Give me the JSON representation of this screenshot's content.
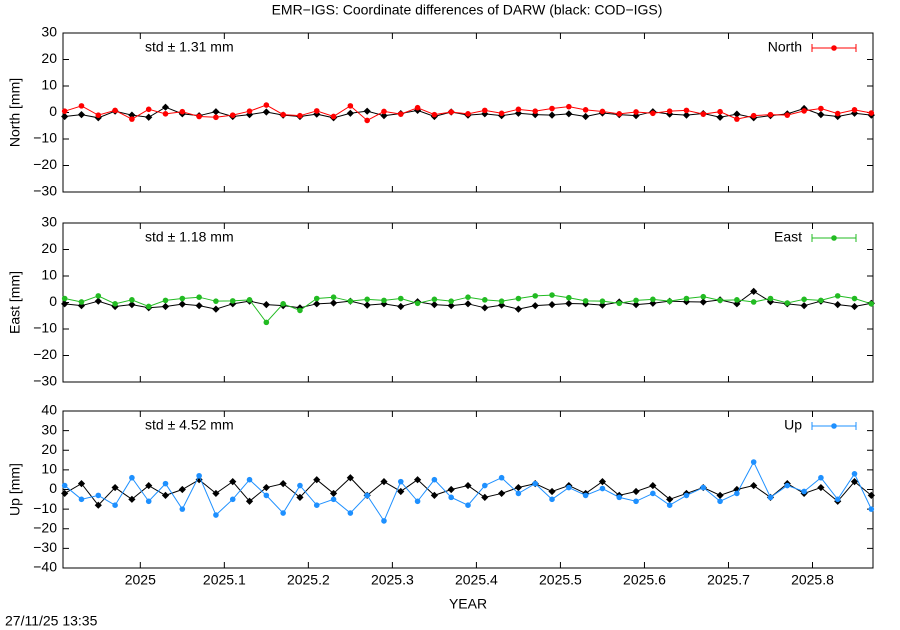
{
  "title": "EMR−IGS: Coordinate differences of DARW (black: COD−IGS)",
  "footer": "27/11/25 13:35",
  "chart_data": [
    {
      "type": "line",
      "ylabel": "North [mm]",
      "annotation": "std ± 1.31 mm",
      "annotation_color": "#ff0000",
      "xlim": [
        2024.908,
        2025.872
      ],
      "ylim": [
        -30,
        30
      ],
      "yticks": [
        {
          "value": -30,
          "label": "−30"
        },
        {
          "value": -20,
          "label": "−20"
        },
        {
          "value": -10,
          "label": "−10"
        },
        0,
        10,
        20,
        30
      ],
      "x": [
        2024.91,
        2024.93,
        2024.95,
        2024.97,
        2024.99,
        2025.01,
        2025.03,
        2025.05,
        2025.07,
        2025.09,
        2025.11,
        2025.13,
        2025.15,
        2025.17,
        2025.19,
        2025.21,
        2025.23,
        2025.25,
        2025.27,
        2025.29,
        2025.31,
        2025.33,
        2025.35,
        2025.37,
        2025.39,
        2025.41,
        2025.43,
        2025.45,
        2025.47,
        2025.49,
        2025.51,
        2025.53,
        2025.55,
        2025.57,
        2025.59,
        2025.61,
        2025.63,
        2025.65,
        2025.67,
        2025.69,
        2025.71,
        2025.73,
        2025.75,
        2025.77,
        2025.79,
        2025.81,
        2025.83,
        2025.85,
        2025.87
      ],
      "series": [
        {
          "color": "#000000",
          "values": [
            -1.5,
            -0.8,
            -2,
            0.5,
            -1,
            -1.8,
            2,
            -0.5,
            -1.2,
            0.3,
            -1.5,
            -0.8,
            0.2,
            -1,
            -1.5,
            -0.6,
            -2,
            -0.3,
            0.5,
            -1.2,
            -0.4,
            0.8,
            -1.5,
            0.2,
            -1,
            -0.5,
            -1.2,
            -0.3,
            -0.8,
            -1,
            -0.5,
            -1.5,
            -0.2,
            -0.8,
            -1.2,
            0.3,
            -0.6,
            -1,
            -0.4,
            -1.8,
            -0.6,
            -2,
            -1.2,
            -0.5,
            1.5,
            -0.8,
            -1.5,
            -0.3,
            -1
          ]
        },
        {
          "name": "North",
          "color": "#ff0000",
          "values": [
            0.5,
            2.5,
            -1,
            0.8,
            -2.5,
            1.2,
            -0.5,
            0.3,
            -1.5,
            -1.8,
            -1,
            0.5,
            2.8,
            -0.8,
            -1.2,
            0.6,
            -1.5,
            2.5,
            -3,
            0.4,
            -0.6,
            1.8,
            -0.8,
            0.2,
            -0.5,
            0.8,
            -0.3,
            1.2,
            0.5,
            1.5,
            2.2,
            1,
            0.4,
            -0.5,
            0.2,
            -0.3,
            0.5,
            0.8,
            -0.6,
            0.3,
            -2.5,
            -1.2,
            -0.8,
            -1,
            0.6,
            1.5,
            -0.4,
            1,
            -0.2
          ]
        }
      ]
    },
    {
      "type": "line",
      "ylabel": "East [mm]",
      "annotation": "std ± 1.18 mm",
      "annotation_color": "#22bb22",
      "xlim": [
        2024.908,
        2025.872
      ],
      "ylim": [
        -30,
        30
      ],
      "yticks": [
        {
          "value": -30,
          "label": "−30"
        },
        {
          "value": -20,
          "label": "−20"
        },
        {
          "value": -10,
          "label": "−10"
        },
        0,
        10,
        20,
        30
      ],
      "x": [
        2024.91,
        2024.93,
        2024.95,
        2024.97,
        2024.99,
        2025.01,
        2025.03,
        2025.05,
        2025.07,
        2025.09,
        2025.11,
        2025.13,
        2025.15,
        2025.17,
        2025.19,
        2025.21,
        2025.23,
        2025.25,
        2025.27,
        2025.29,
        2025.31,
        2025.33,
        2025.35,
        2025.37,
        2025.39,
        2025.41,
        2025.43,
        2025.45,
        2025.47,
        2025.49,
        2025.51,
        2025.53,
        2025.55,
        2025.57,
        2025.59,
        2025.61,
        2025.63,
        2025.65,
        2025.67,
        2025.69,
        2025.71,
        2025.73,
        2025.75,
        2025.77,
        2025.79,
        2025.81,
        2025.83,
        2025.85,
        2025.87
      ],
      "series": [
        {
          "color": "#000000",
          "values": [
            -0.5,
            -1.2,
            0.5,
            -1.5,
            -0.8,
            -2,
            -1.5,
            -0.6,
            -1.2,
            -2.5,
            -0.5,
            0.5,
            -0.8,
            -1.2,
            -2,
            -0.5,
            -0.2,
            0.5,
            -1,
            -0.5,
            -1.5,
            0.3,
            -0.8,
            -1.2,
            -0.5,
            -2,
            -1,
            -2.5,
            -1.2,
            -0.8,
            -0.4,
            -0.5,
            -1,
            0.2,
            -0.8,
            -0.3,
            0.5,
            0.3,
            0.2,
            1,
            -0.5,
            4.2,
            0.3,
            -0.5,
            -1.2,
            0.5,
            -0.8,
            -1.5,
            -0.3
          ]
        },
        {
          "name": "East",
          "color": "#22bb22",
          "values": [
            1.5,
            0.2,
            2.5,
            -0.5,
            1,
            -1.5,
            0.8,
            1.5,
            2,
            0.5,
            0.6,
            1,
            -7.5,
            -0.5,
            -3,
            1.5,
            2,
            0.5,
            1.2,
            0.8,
            1.5,
            -0.3,
            1.2,
            0.5,
            2,
            1,
            0.5,
            1.5,
            2.5,
            2.8,
            1.8,
            0.6,
            0.5,
            -0.3,
            0.8,
            1.2,
            0.5,
            1.5,
            2.2,
            0.8,
            1,
            0.2,
            1.5,
            -0.2,
            1.2,
            0.8,
            2.5,
            1.5,
            -0.5
          ]
        }
      ]
    },
    {
      "type": "line",
      "ylabel": "Up [mm]",
      "annotation": "std ± 4.52 mm",
      "annotation_color": "#1e90ff",
      "xlabel": "YEAR",
      "xlim": [
        2024.908,
        2025.872
      ],
      "ylim": [
        -40,
        40
      ],
      "xticks": [
        2025,
        2025.1,
        2025.2,
        2025.3,
        2025.4,
        2025.5,
        2025.6,
        2025.7,
        2025.8
      ],
      "yticks": [
        {
          "value": -40,
          "label": "−40"
        },
        {
          "value": -30,
          "label": "−30"
        },
        {
          "value": -20,
          "label": "−20"
        },
        {
          "value": -10,
          "label": "−10"
        },
        0,
        10,
        20,
        30,
        40
      ],
      "x": [
        2024.91,
        2024.93,
        2024.95,
        2024.97,
        2024.99,
        2025.01,
        2025.03,
        2025.05,
        2025.07,
        2025.09,
        2025.11,
        2025.13,
        2025.15,
        2025.17,
        2025.19,
        2025.21,
        2025.23,
        2025.25,
        2025.27,
        2025.29,
        2025.31,
        2025.33,
        2025.35,
        2025.37,
        2025.39,
        2025.41,
        2025.43,
        2025.45,
        2025.47,
        2025.49,
        2025.51,
        2025.53,
        2025.55,
        2025.57,
        2025.59,
        2025.61,
        2025.63,
        2025.65,
        2025.67,
        2025.69,
        2025.71,
        2025.73,
        2025.75,
        2025.77,
        2025.79,
        2025.81,
        2025.83,
        2025.85,
        2025.87
      ],
      "series": [
        {
          "color": "#000000",
          "values": [
            -2,
            3,
            -8,
            1,
            -5,
            2,
            -3,
            0,
            5,
            -2,
            4,
            -6,
            1,
            3,
            -4,
            5,
            -2,
            6,
            -3,
            4,
            -1,
            5,
            -3,
            0,
            2,
            -4,
            -2,
            1,
            3,
            -1,
            2,
            -2,
            4,
            -3,
            -1,
            2,
            -5,
            -2,
            1,
            -3,
            0,
            2,
            -4,
            3,
            -2,
            1,
            -6,
            4,
            -3
          ]
        },
        {
          "name": "Up",
          "color": "#1e90ff",
          "values": [
            2,
            -5,
            -3,
            -8,
            6,
            -6,
            3,
            -10,
            7,
            -13,
            -5,
            5,
            -3,
            -12,
            2,
            -8,
            -5,
            -12,
            -3,
            -16,
            4,
            -6,
            5,
            -4,
            -8,
            2,
            6,
            -2,
            3,
            -5,
            1,
            -3,
            0.5,
            -4,
            -6,
            -2,
            -8,
            -3,
            1,
            -6,
            -2,
            14,
            -4,
            2,
            -1,
            6,
            -5,
            8,
            -10
          ]
        }
      ]
    }
  ]
}
